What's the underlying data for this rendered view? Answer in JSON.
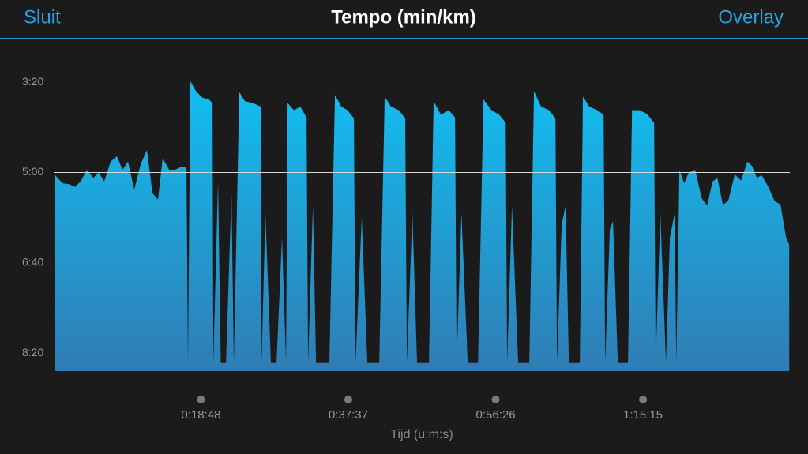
{
  "header": {
    "left": "Sluit",
    "right": "Overlay"
  },
  "chart_data": {
    "type": "area",
    "title": "Tempo (min/km)",
    "x_label": "Tijd (u:m:s)",
    "color_top": "#12bff2",
    "color_bottom": "#2f7db4",
    "xlim": [
      0,
      5640
    ],
    "xticks": [
      {
        "value": 1128,
        "label": "0:18:48"
      },
      {
        "value": 2257,
        "label": "0:37:37"
      },
      {
        "value": 3386,
        "label": "0:56:26"
      },
      {
        "value": 4515,
        "label": "1:15:15"
      }
    ],
    "ylim": [
      520,
      150
    ],
    "yticks": [
      {
        "value": 200,
        "label": "3:20"
      },
      {
        "value": 300,
        "label": "5:00"
      },
      {
        "value": 400,
        "label": "6:40"
      },
      {
        "value": 500,
        "label": "8:20"
      }
    ],
    "reference_line": 300,
    "x": [
      12,
      42,
      73,
      121,
      163,
      206,
      254,
      303,
      345,
      387,
      436,
      484,
      527,
      569,
      617,
      666,
      714,
      757,
      799,
      835,
      884,
      932,
      981,
      1017,
      1029,
      1047,
      1090,
      1138,
      1187,
      1217,
      1223,
      1259,
      1280,
      1320,
      1362,
      1380,
      1422,
      1465,
      1525,
      1586,
      1592,
      1622,
      1664,
      1707,
      1749,
      1780,
      1792,
      1840,
      1889,
      1937,
      1949,
      1986,
      2010,
      2082,
      2112,
      2155,
      2203,
      2251,
      2300,
      2312,
      2360,
      2403,
      2457,
      2494,
      2536,
      2584,
      2645,
      2693,
      2706,
      2748,
      2784,
      2857,
      2875,
      2911,
      2966,
      3027,
      3075,
      3087,
      3124,
      3172,
      3239,
      3251,
      3293,
      3354,
      3414,
      3463,
      3474,
      3511,
      3559,
      3632,
      3644,
      3680,
      3734,
      3795,
      3844,
      3856,
      3892,
      3922,
      3947,
      4007,
      4031,
      4055,
      4104,
      4164,
      4213,
      4225,
      4261,
      4285,
      4322,
      4400,
      4431,
      4491,
      4551,
      4600,
      4612,
      4648,
      4691,
      4721,
      4758,
      4770,
      4794,
      4830,
      4866,
      4915,
      4963,
      5006,
      5048,
      5085,
      5127,
      5169,
      5218,
      5266,
      5315,
      5351,
      5387,
      5424,
      5472,
      5521,
      5569,
      5611,
      5635
    ],
    "values": [
      303,
      308,
      312,
      313,
      316,
      310,
      297,
      306,
      300,
      310,
      288,
      282,
      297,
      288,
      319,
      291,
      275,
      323,
      330,
      284,
      297,
      297,
      293,
      295,
      511,
      199,
      210,
      217,
      219,
      223,
      511,
      310,
      511,
      511,
      323,
      511,
      211,
      221,
      223,
      227,
      511,
      345,
      511,
      511,
      372,
      511,
      223,
      231,
      227,
      239,
      511,
      337,
      511,
      511,
      511,
      214,
      227,
      231,
      240,
      511,
      350,
      511,
      511,
      511,
      216,
      227,
      231,
      240,
      511,
      345,
      511,
      511,
      511,
      221,
      236,
      231,
      239,
      511,
      345,
      511,
      511,
      511,
      219,
      231,
      236,
      245,
      511,
      337,
      511,
      511,
      511,
      210,
      227,
      231,
      240,
      511,
      358,
      337,
      511,
      511,
      511,
      216,
      227,
      231,
      236,
      511,
      363,
      354,
      511,
      511,
      231,
      231,
      236,
      245,
      511,
      345,
      511,
      372,
      345,
      511,
      297,
      312,
      300,
      297,
      328,
      337,
      310,
      306,
      336,
      331,
      302,
      309,
      288,
      293,
      306,
      303,
      315,
      331,
      336,
      372,
      380
    ]
  }
}
